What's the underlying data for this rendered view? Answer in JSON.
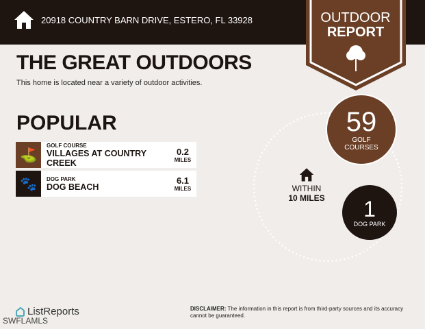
{
  "header": {
    "address": "20918 COUNTRY BARN DRIVE, ESTERO, FL 33928",
    "badge_line1": "OUTDOOR",
    "badge_line2": "REPORT"
  },
  "title": "THE GREAT OUTDOORS",
  "subtitle": "This home is located near a variety of outdoor activities.",
  "popular": {
    "heading": "POPULAR",
    "items": [
      {
        "category": "GOLF COURSE",
        "name": "VILLAGES AT COUNTRY CREEK",
        "distance": "0.2",
        "unit": "MILES",
        "icon": "golf-bag-icon",
        "color": "#6b3f26"
      },
      {
        "category": "DOG PARK",
        "name": "DOG BEACH",
        "distance": "6.1",
        "unit": "MILES",
        "icon": "paw-icon",
        "color": "#1e1410"
      }
    ]
  },
  "radius": {
    "line1": "WITHIN",
    "line2": "10 MILES"
  },
  "stats": [
    {
      "count": "59",
      "label1": "GOLF",
      "label2": "COURSES",
      "color": "#6b3f26"
    },
    {
      "count": "1",
      "label1": "DOG PARK",
      "color": "#1e1410"
    }
  ],
  "footer": {
    "brand": "ListReports",
    "mls": "SWFLAMLS",
    "disclaimer_label": "DISCLAIMER:",
    "disclaimer_text": " The information in this report is from third-party sources and its accuracy cannot be guaranteed."
  }
}
